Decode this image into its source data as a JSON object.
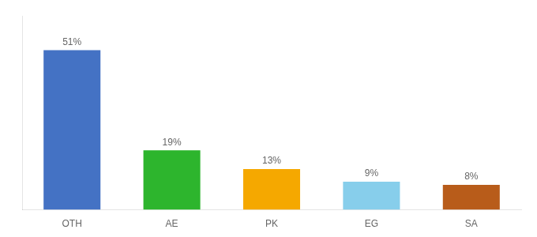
{
  "chart_data": {
    "type": "bar",
    "categories": [
      "OTH",
      "AE",
      "PK",
      "EG",
      "SA"
    ],
    "values": [
      51,
      19,
      13,
      9,
      8
    ],
    "value_labels": [
      "51%",
      "19%",
      "13%",
      "9%",
      "8%"
    ],
    "colors": [
      "#4472c4",
      "#2db52d",
      "#f5a800",
      "#87ceeb",
      "#b85c1a"
    ],
    "ylim": [
      0,
      62
    ],
    "grid": false,
    "tick_labels": "x",
    "data_labels": true
  }
}
